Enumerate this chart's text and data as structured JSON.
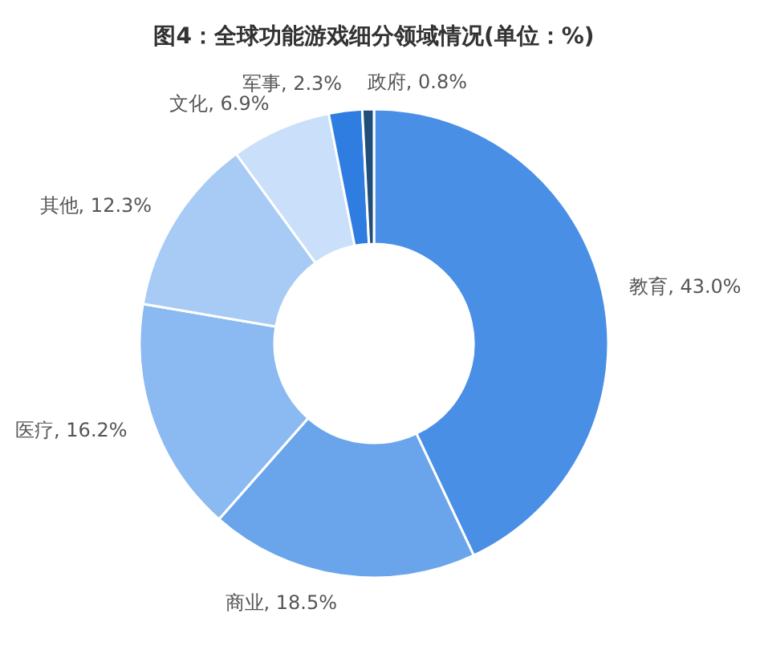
{
  "chart_data": {
    "type": "donut",
    "title": "图4：全球功能游戏细分领域情况(单位：%)",
    "categories": [
      "教育",
      "商业",
      "医疗",
      "其他",
      "文化",
      "军事",
      "政府"
    ],
    "values": [
      43.0,
      18.5,
      16.2,
      12.3,
      6.9,
      2.3,
      0.8
    ],
    "colors": [
      "#4a8fe6",
      "#6aa5ec",
      "#8bb9f1",
      "#a8cbf5",
      "#c9dffa",
      "#2f7de1",
      "#1f4e79"
    ],
    "value_labels": [
      "43.0%",
      "18.5%",
      "16.2%",
      "12.3%",
      "6.9%",
      "2.3%",
      "0.8%"
    ]
  }
}
